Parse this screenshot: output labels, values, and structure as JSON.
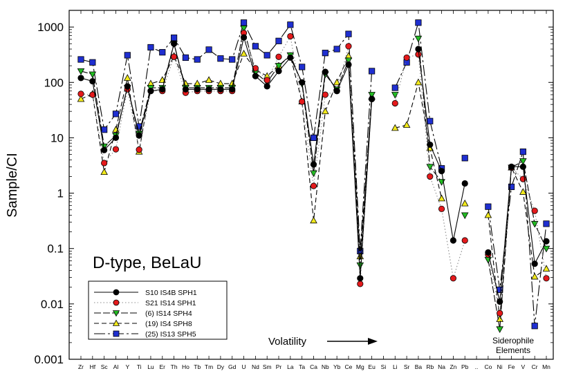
{
  "chart_data": {
    "type": "line",
    "title": "",
    "xlabel": "",
    "ylabel": "Sample/CI",
    "yscale": "log",
    "ylim": [
      0.001,
      2000
    ],
    "yticks": [
      "1000",
      "100",
      "10",
      "1",
      "0.1",
      "0.01",
      "0.001"
    ],
    "categories": [
      "Zr",
      "Hf",
      "Sc",
      "Al",
      "Y",
      "Ti",
      "Lu",
      "Er",
      "Th",
      "Ho",
      "Tb",
      "Tm",
      "Dy",
      "Gd",
      "U",
      "Nd",
      "Sm",
      "Pr",
      "La",
      "Ta",
      "Ca",
      "Nb",
      "Yb",
      "Ce",
      "Mg",
      "Eu",
      "Si",
      "Li",
      "Sr",
      "Ba",
      "Rb",
      "Na",
      "Zn",
      "Pb",
      "..",
      "Co",
      "Ni",
      "Fe",
      "V",
      "Cr",
      "Mn"
    ],
    "annotations": {
      "sample_label": "D-type, BeLaU",
      "volatility": "Volatility",
      "siderophile_line1": "Siderophile",
      "siderophile_line2": "Elements"
    },
    "series": [
      {
        "name": "S10 IS4B SPH1",
        "color": "#000000",
        "marker": "circle",
        "dash": "",
        "values": [
          120,
          105,
          6,
          10,
          85,
          11,
          70,
          75,
          500,
          75,
          75,
          75,
          75,
          75,
          650,
          130,
          85,
          160,
          280,
          100,
          3.3,
          155,
          70,
          210,
          0.029,
          50,
          null,
          null,
          null,
          400,
          7.5,
          2.5,
          0.14,
          1.5,
          null,
          0.085,
          0.011,
          3,
          3,
          0.053,
          0.135
        ]
      },
      {
        "name": "S21 IS14 SPH1",
        "color": "#e41a1c",
        "marker": "circle",
        "dash": "1.5,3",
        "values": [
          62,
          60,
          3.5,
          6.2,
          75,
          6.1,
          70,
          70,
          290,
          65,
          70,
          70,
          70,
          70,
          780,
          180,
          110,
          290,
          680,
          45,
          1.35,
          60,
          70,
          450,
          0.023,
          50,
          null,
          42,
          280,
          320,
          2,
          0.52,
          0.029,
          0.14,
          null,
          0.078,
          0.0068,
          2.9,
          1.8,
          0.48,
          0.029
        ]
      },
      {
        "name": "(6) IS14 SPH4",
        "color": "#22bb22",
        "marker": "triangle-down",
        "dash": "10,3",
        "values": [
          160,
          140,
          7,
          11,
          80,
          12,
          80,
          80,
          500,
          80,
          80,
          80,
          80,
          80,
          950,
          150,
          100,
          200,
          310,
          95,
          2.3,
          140,
          75,
          250,
          0.05,
          60,
          null,
          60,
          null,
          620,
          3,
          1.6,
          null,
          0.4,
          null,
          0.063,
          0.0035,
          2.9,
          3.8,
          0.28,
          0.1
        ]
      },
      {
        "name": "(19) IS4 SPH8",
        "color": "#f2ea1c",
        "marker": "triangle-up",
        "dash": "7,4",
        "values": [
          50,
          62,
          2.4,
          14,
          120,
          5.6,
          95,
          110,
          300,
          95,
          95,
          110,
          95,
          95,
          330,
          170,
          130,
          200,
          300,
          45,
          0.32,
          30,
          100,
          300,
          0.072,
          55,
          null,
          15,
          17,
          100,
          6.5,
          0.8,
          null,
          0.65,
          null,
          0.4,
          0.0053,
          2.9,
          1.05,
          0.031,
          0.043
        ]
      },
      {
        "name": "(25) IS13 SPH5",
        "color": "#1f2fd0",
        "marker": "square",
        "dash": "16,4,3,4",
        "values": [
          260,
          230,
          14,
          27,
          310,
          16,
          430,
          350,
          640,
          280,
          260,
          390,
          270,
          260,
          1200,
          450,
          310,
          560,
          1100,
          190,
          10,
          340,
          400,
          750,
          0.09,
          160,
          null,
          80,
          230,
          1200,
          20,
          2.8,
          null,
          4.3,
          null,
          0.57,
          0.018,
          1.3,
          5.6,
          0.004,
          0.28
        ]
      }
    ]
  }
}
